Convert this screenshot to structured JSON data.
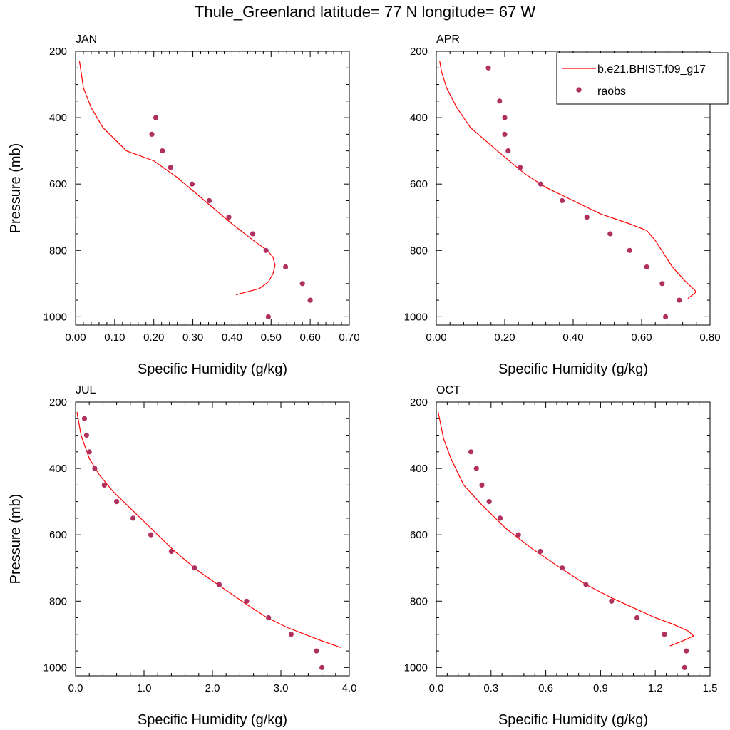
{
  "title": "Thule_Greenland  latitude= 77 N longitude= 67 W",
  "colors": {
    "model_line": "#ff0000",
    "obs_marker": "#b03060",
    "axis": "#000000"
  },
  "legend": {
    "placement": "top-right of APR panel",
    "entries": [
      "b.e21.BHIST.f09_g17",
      "raobs"
    ]
  },
  "chart_data": [
    {
      "type": "line",
      "title": "JAN",
      "xlabel": "Specific Humidity (g/kg)",
      "ylabel": "Pressure (mb)",
      "xlim": [
        0,
        0.7
      ],
      "ylim": [
        200,
        1025
      ],
      "y_inverted": true,
      "xticks": [
        "0.00",
        "0.10",
        "0.20",
        "0.30",
        "0.40",
        "0.50",
        "0.60",
        "0.70"
      ],
      "xtick_values": [
        0,
        0.1,
        0.2,
        0.3,
        0.4,
        0.5,
        0.6,
        0.7
      ],
      "yticks": [
        "200",
        "400",
        "600",
        "800",
        "1000"
      ],
      "ytick_values": [
        200,
        400,
        600,
        800,
        1000
      ],
      "series": [
        {
          "name": "b.e21.BHIST.f09_g17",
          "kind": "line",
          "x": [
            0.41,
            0.47,
            0.493,
            0.505,
            0.51,
            0.505,
            0.49,
            0.455,
            0.4,
            0.33,
            0.26,
            0.2,
            0.13,
            0.07,
            0.04,
            0.02,
            0.01
          ],
          "y": [
            934,
            915,
            895,
            870,
            845,
            820,
            800,
            770,
            720,
            650,
            580,
            530,
            500,
            430,
            370,
            310,
            230
          ]
        },
        {
          "name": "raobs",
          "kind": "scatter",
          "x": [
            0.205,
            0.195,
            0.222,
            0.243,
            0.298,
            0.342,
            0.392,
            0.453,
            0.487,
            0.537,
            0.58,
            0.6,
            0.493
          ],
          "y": [
            400,
            450,
            500,
            550,
            600,
            650,
            700,
            750,
            800,
            850,
            900,
            950,
            1000
          ]
        }
      ]
    },
    {
      "type": "line",
      "title": "APR",
      "xlabel": "Specific Humidity (g/kg)",
      "ylabel": "",
      "xlim": [
        0,
        0.8
      ],
      "ylim": [
        200,
        1025
      ],
      "y_inverted": true,
      "xticks": [
        "0.00",
        "0.20",
        "0.40",
        "0.60",
        "0.80"
      ],
      "xtick_values": [
        0,
        0.2,
        0.4,
        0.6,
        0.8
      ],
      "yticks": [
        "200",
        "400",
        "600",
        "800",
        "1000"
      ],
      "ytick_values": [
        200,
        400,
        600,
        800,
        1000
      ],
      "series": [
        {
          "name": "b.e21.BHIST.f09_g17",
          "kind": "line",
          "x": [
            0.735,
            0.76,
            0.725,
            0.69,
            0.665,
            0.64,
            0.615,
            0.565,
            0.48,
            0.4,
            0.32,
            0.26,
            0.19,
            0.1,
            0.06,
            0.03,
            0.015,
            0.01
          ],
          "y": [
            945,
            925,
            890,
            850,
            810,
            770,
            740,
            720,
            690,
            650,
            610,
            570,
            510,
            430,
            370,
            310,
            260,
            230
          ]
        },
        {
          "name": "raobs",
          "kind": "scatter",
          "x": [
            0.152,
            0.185,
            0.2,
            0.2,
            0.21,
            0.245,
            0.305,
            0.368,
            0.44,
            0.508,
            0.565,
            0.615,
            0.66,
            0.71,
            0.67
          ],
          "y": [
            250,
            350,
            400,
            450,
            500,
            550,
            600,
            650,
            700,
            750,
            800,
            850,
            900,
            950,
            1000
          ]
        }
      ]
    },
    {
      "type": "line",
      "title": "JUL",
      "xlabel": "Specific Humidity (g/kg)",
      "ylabel": "Pressure (mb)",
      "xlim": [
        0,
        4.0
      ],
      "ylim": [
        200,
        1025
      ],
      "y_inverted": true,
      "xticks": [
        "0.0",
        "1.0",
        "2.0",
        "3.0",
        "4.0"
      ],
      "xtick_values": [
        0,
        1,
        2,
        3,
        4
      ],
      "yticks": [
        "200",
        "400",
        "600",
        "800",
        "1000"
      ],
      "ytick_values": [
        200,
        400,
        600,
        800,
        1000
      ],
      "series": [
        {
          "name": "b.e21.BHIST.f09_g17",
          "kind": "line",
          "x": [
            3.88,
            3.6,
            3.35,
            3.1,
            2.8,
            2.5,
            2.15,
            1.8,
            1.45,
            1.15,
            0.85,
            0.55,
            0.35,
            0.2,
            0.08,
            0.02
          ],
          "y": [
            940,
            920,
            900,
            880,
            850,
            810,
            760,
            710,
            650,
            590,
            530,
            470,
            420,
            370,
            300,
            230
          ]
        },
        {
          "name": "raobs",
          "kind": "scatter",
          "x": [
            0.13,
            0.16,
            0.2,
            0.28,
            0.42,
            0.6,
            0.84,
            1.1,
            1.4,
            1.74,
            2.1,
            2.5,
            2.82,
            3.15,
            3.52,
            3.6
          ],
          "y": [
            250,
            300,
            350,
            400,
            450,
            500,
            550,
            600,
            650,
            700,
            750,
            800,
            850,
            900,
            950,
            1000
          ]
        }
      ]
    },
    {
      "type": "line",
      "title": "OCT",
      "xlabel": "Specific Humidity (g/kg)",
      "ylabel": "",
      "xlim": [
        0,
        1.5
      ],
      "ylim": [
        200,
        1025
      ],
      "y_inverted": true,
      "xticks": [
        "0.0",
        "0.3",
        "0.6",
        "0.9",
        "1.2",
        "1.5"
      ],
      "xtick_values": [
        0,
        0.3,
        0.6,
        0.9,
        1.2,
        1.5
      ],
      "yticks": [
        "200",
        "400",
        "600",
        "800",
        "1000"
      ],
      "ytick_values": [
        200,
        400,
        600,
        800,
        1000
      ],
      "series": [
        {
          "name": "b.e21.BHIST.f09_g17",
          "kind": "line",
          "x": [
            1.28,
            1.35,
            1.41,
            1.38,
            1.3,
            1.2,
            1.08,
            0.96,
            0.82,
            0.68,
            0.52,
            0.38,
            0.25,
            0.15,
            0.08,
            0.04,
            0.01
          ],
          "y": [
            935,
            920,
            905,
            890,
            870,
            850,
            820,
            790,
            750,
            700,
            640,
            580,
            510,
            450,
            370,
            310,
            230
          ]
        },
        {
          "name": "raobs",
          "kind": "scatter",
          "x": [
            0.19,
            0.22,
            0.25,
            0.29,
            0.35,
            0.45,
            0.57,
            0.69,
            0.82,
            0.96,
            1.1,
            1.25,
            1.37,
            1.36
          ],
          "y": [
            350,
            400,
            450,
            500,
            550,
            600,
            650,
            700,
            750,
            800,
            850,
            900,
            950,
            1000
          ]
        }
      ]
    }
  ]
}
